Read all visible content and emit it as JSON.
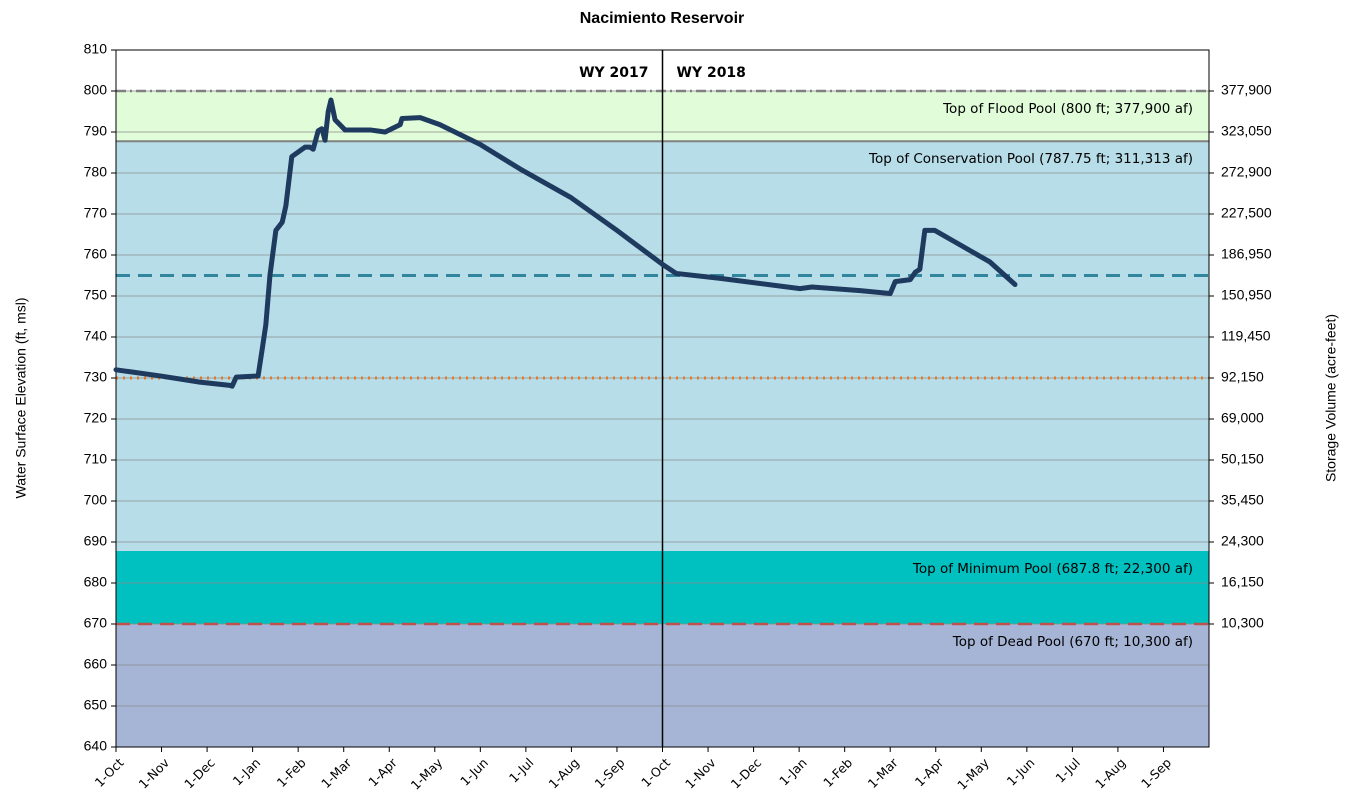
{
  "chart_data": {
    "type": "line",
    "title": "Nacimiento Reservoir",
    "y_label": "Water Surface Elevation (ft, msl)",
    "y2_label": "Storage Volume (acre-feet)",
    "ylim": [
      640,
      810
    ],
    "yticks": [
      640,
      650,
      660,
      670,
      680,
      690,
      700,
      710,
      720,
      730,
      740,
      750,
      760,
      770,
      780,
      790,
      800,
      810
    ],
    "xlim": [
      0,
      24
    ],
    "xticks": [
      {
        "value": 0,
        "label": "1-Oct"
      },
      {
        "value": 1,
        "label": "1-Nov"
      },
      {
        "value": 2,
        "label": "1-Dec"
      },
      {
        "value": 3,
        "label": "1-Jan"
      },
      {
        "value": 4,
        "label": "1-Feb"
      },
      {
        "value": 5,
        "label": "1-Mar"
      },
      {
        "value": 6,
        "label": "1-Apr"
      },
      {
        "value": 7,
        "label": "1-May"
      },
      {
        "value": 8,
        "label": "1-Jun"
      },
      {
        "value": 9,
        "label": "1-Jul"
      },
      {
        "value": 10,
        "label": "1-Aug"
      },
      {
        "value": 11,
        "label": "1-Sep"
      },
      {
        "value": 12,
        "label": "1-Oct"
      },
      {
        "value": 13,
        "label": "1-Nov"
      },
      {
        "value": 14,
        "label": "1-Dec"
      },
      {
        "value": 15,
        "label": "1-Jan"
      },
      {
        "value": 16,
        "label": "1-Feb"
      },
      {
        "value": 17,
        "label": "1-Mar"
      },
      {
        "value": 18,
        "label": "1-Apr"
      },
      {
        "value": 19,
        "label": "1-May"
      },
      {
        "value": 20,
        "label": "1-Jun"
      },
      {
        "value": 21,
        "label": "1-Jul"
      },
      {
        "value": 22,
        "label": "1-Aug"
      },
      {
        "value": 23,
        "label": "1-Sep"
      }
    ],
    "y2ticks": [
      {
        "value": 377900,
        "label": "377,900"
      },
      {
        "value": 323050,
        "label": "323,050"
      },
      {
        "value": 272900,
        "label": "272,900"
      },
      {
        "value": 227500,
        "label": "227,500"
      },
      {
        "value": 186950,
        "label": "186,950"
      },
      {
        "value": 150950,
        "label": "150,950"
      },
      {
        "value": 119450,
        "label": "119,450"
      },
      {
        "value": 92150,
        "label": "92,150"
      },
      {
        "value": 69000,
        "label": "69,000"
      },
      {
        "value": 50150,
        "label": "50,150"
      },
      {
        "value": 35450,
        "label": "35,450"
      },
      {
        "value": 24300,
        "label": "24,300"
      },
      {
        "value": 16150,
        "label": "16,150"
      },
      {
        "value": 10300,
        "label": "10,300"
      }
    ],
    "y2tick_elevations": [
      800,
      790,
      780,
      770,
      760,
      750,
      740,
      730,
      720,
      710,
      700,
      690,
      680,
      670
    ],
    "grid": true,
    "pools": [
      {
        "label": "Top of Flood Pool (800 ft; 377,900 af)",
        "elevation": 800,
        "fill": "#e0fcd9",
        "line": "dashdot",
        "line_color": "#808080"
      },
      {
        "label": "Top of Conservation Pool (787.75 ft; 311,313 af)",
        "elevation": 787.75,
        "fill": "#b7dde8",
        "line": "solid",
        "line_color": "#808080"
      },
      {
        "label": "Top of Minimum Pool (687.8 ft; 22,300 af)",
        "elevation": 687.8,
        "fill": "#00c0c0",
        "line": null,
        "line_color": null
      },
      {
        "label": "Top of Dead Pool (670 ft; 10,300 af)",
        "elevation": 670,
        "fill": "#a6b5d6",
        "line": "dashed",
        "line_color": "#c0504d"
      }
    ],
    "reference_lines": [
      {
        "value": 755,
        "color": "#31859c",
        "style": "dashed"
      },
      {
        "value": 730,
        "color": "#e87722",
        "style": "dotted"
      }
    ],
    "divider": 12,
    "water_years": [
      "WY 2017",
      "WY 2018"
    ],
    "series": [
      {
        "color": "#1f3a5f",
        "x": [
          0,
          0.97,
          1.84,
          2.5,
          2.55,
          2.64,
          3.12,
          3.21,
          3.29,
          3.38,
          3.51,
          3.65,
          3.73,
          3.86,
          4.15,
          4.26,
          4.33,
          4.44,
          4.52,
          4.59,
          4.66,
          4.72,
          4.81,
          5.03,
          5.58,
          5.91,
          6.24,
          6.28,
          6.68,
          7.11,
          7.99,
          8.87,
          9.99,
          11.0,
          11.99,
          12.3,
          13.27,
          15.02,
          15.28,
          16.34,
          17.0,
          17.11,
          17.44,
          17.55,
          17.65,
          17.76,
          17.98,
          18.53,
          19.19,
          19.74
        ],
        "values": [
          732,
          730.5,
          729,
          728.2,
          728,
          730.2,
          730.5,
          737,
          743,
          755,
          766,
          768,
          772,
          784,
          786.3,
          786.3,
          785.8,
          790.3,
          790.8,
          788,
          795,
          797.8,
          793,
          790.5,
          790.5,
          790,
          791.8,
          793.3,
          793.5,
          791.8,
          787,
          781,
          774,
          766,
          757.8,
          755.5,
          754.3,
          751.8,
          752.2,
          751.3,
          750.6,
          753.5,
          754,
          755.8,
          756.5,
          766,
          766,
          762.5,
          758.3,
          752.8
        ]
      }
    ]
  }
}
